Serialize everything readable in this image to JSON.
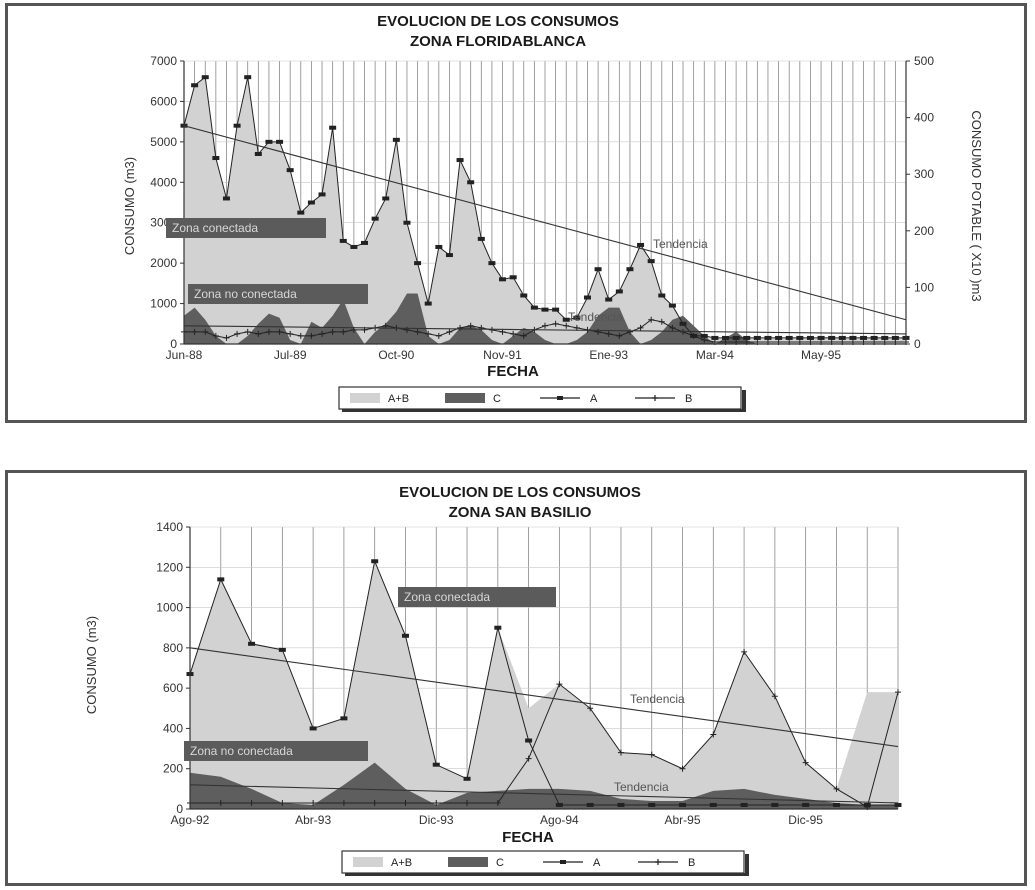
{
  "chart_data": [
    {
      "type": "area",
      "title": "EVOLUCION DE LOS CONSUMOS",
      "subtitle": "ZONA FLORIDABLANCA",
      "xlabel": "FECHA",
      "ylabel": "CONSUMO (m3)",
      "ylabel_right": "CONSUMO POTABLE ( X10 )m3",
      "ylim": [
        0,
        7000
      ],
      "ylim_right": [
        0,
        500
      ],
      "yticks": [
        0,
        1000,
        2000,
        3000,
        4000,
        5000,
        6000,
        7000
      ],
      "yticks_right": [
        0,
        100,
        200,
        300,
        400,
        500
      ],
      "xticks": [
        {
          "label": "Jun-88",
          "index": 0
        },
        {
          "label": "Jul-89",
          "index": 10
        },
        {
          "label": "Oct-90",
          "index": 20
        },
        {
          "label": "Nov-91",
          "index": 30
        },
        {
          "label": "Ene-93",
          "index": 40
        },
        {
          "label": "Mar-94",
          "index": 50
        },
        {
          "label": "May-95",
          "index": 60
        }
      ],
      "n_points": 69,
      "grid": "vertical",
      "series": [
        {
          "name": "A+B",
          "kind": "area",
          "color": "#d2d2d2",
          "values": [
            5400,
            6400,
            6600,
            4600,
            3600,
            5400,
            6600,
            4700,
            5000,
            5000,
            4300,
            3250,
            3500,
            3700,
            5350,
            2550,
            2400,
            2500,
            3100,
            3600,
            5050,
            3000,
            2000,
            1000,
            2400,
            2200,
            4550,
            4000,
            2600,
            2000,
            1600,
            1650,
            1200,
            900,
            850,
            850,
            600,
            650,
            1150,
            1850,
            1100,
            1300,
            1850,
            2450,
            2050,
            1200,
            950,
            500,
            200,
            200,
            150,
            150,
            150,
            150,
            150,
            150,
            150,
            150,
            150,
            150,
            150,
            150,
            150,
            150,
            150,
            150,
            150,
            150,
            150
          ]
        },
        {
          "name": "C",
          "kind": "area",
          "color": "#5e5e5e",
          "values": [
            700,
            900,
            600,
            200,
            0,
            0,
            200,
            500,
            750,
            650,
            100,
            0,
            550,
            400,
            700,
            1100,
            400,
            0,
            300,
            500,
            800,
            1250,
            1250,
            200,
            0,
            100,
            400,
            450,
            350,
            100,
            0,
            200,
            400,
            300,
            100,
            0,
            0,
            100,
            300,
            700,
            900,
            900,
            300,
            0,
            100,
            300,
            600,
            700,
            450,
            200,
            0,
            150,
            300,
            100,
            0,
            0,
            0,
            0,
            0,
            0,
            0,
            0,
            0,
            0,
            0,
            0,
            0,
            0,
            0
          ]
        },
        {
          "name": "A",
          "kind": "line",
          "color": "#222222",
          "values": [
            5400,
            6400,
            6600,
            4600,
            3600,
            5400,
            6600,
            4700,
            5000,
            5000,
            4300,
            3250,
            3500,
            3700,
            5350,
            2550,
            2400,
            2500,
            3100,
            3600,
            5050,
            3000,
            2000,
            1000,
            2400,
            2200,
            4550,
            4000,
            2600,
            2000,
            1600,
            1650,
            1200,
            900,
            850,
            850,
            600,
            650,
            1150,
            1850,
            1100,
            1300,
            1850,
            2450,
            2050,
            1200,
            950,
            500,
            200,
            200,
            150,
            150,
            150,
            150,
            150,
            150,
            150,
            150,
            150,
            150,
            150,
            150,
            150,
            150,
            150,
            150,
            150,
            150,
            150
          ]
        },
        {
          "name": "B",
          "kind": "line",
          "color": "#222222",
          "values": [
            300,
            300,
            300,
            200,
            150,
            250,
            300,
            250,
            300,
            300,
            250,
            200,
            200,
            250,
            300,
            300,
            350,
            350,
            400,
            450,
            400,
            350,
            300,
            250,
            200,
            300,
            400,
            450,
            400,
            350,
            300,
            250,
            200,
            350,
            450,
            500,
            450,
            400,
            350,
            300,
            250,
            200,
            300,
            400,
            600,
            550,
            400,
            300,
            200,
            100,
            50,
            50,
            50,
            50,
            50,
            50,
            50,
            50,
            50,
            50,
            50,
            50,
            50,
            50,
            50,
            50,
            50,
            50,
            50
          ]
        }
      ],
      "trendlines": [
        {
          "label": "Tendencia",
          "from": [
            0,
            5400
          ],
          "to": [
            68,
            600
          ]
        },
        {
          "label": "Tendencia",
          "from": [
            0,
            450
          ],
          "to": [
            68,
            250
          ]
        }
      ],
      "annotations": [
        "Zona conectada",
        "Zona no conectada"
      ],
      "legend": [
        "A+B",
        "C",
        "A",
        "B"
      ],
      "legend_position": "bottom"
    },
    {
      "type": "area",
      "title": "EVOLUCION DE LOS CONSUMOS",
      "subtitle": "ZONA SAN BASILIO",
      "xlabel": "FECHA",
      "ylabel": "CONSUMO (m3)",
      "ylim": [
        0,
        1400
      ],
      "yticks": [
        0,
        200,
        400,
        600,
        800,
        1000,
        1200,
        1400
      ],
      "xticks": [
        {
          "label": "Ago-92",
          "index": 0
        },
        {
          "label": "Abr-93",
          "index": 4
        },
        {
          "label": "Dic-93",
          "index": 8
        },
        {
          "label": "Ago-94",
          "index": 12
        },
        {
          "label": "Abr-95",
          "index": 16
        },
        {
          "label": "Dic-95",
          "index": 20
        }
      ],
      "n_points": 24,
      "grid": "vertical",
      "series": [
        {
          "name": "A+B",
          "kind": "area",
          "color": "#d2d2d2",
          "values": [
            670,
            1140,
            820,
            790,
            400,
            450,
            1230,
            860,
            220,
            150,
            900,
            500,
            620,
            500,
            280,
            270,
            200,
            370,
            780,
            560,
            230,
            100,
            580,
            580
          ]
        },
        {
          "name": "C",
          "kind": "area",
          "color": "#5e5e5e",
          "values": [
            180,
            160,
            100,
            30,
            20,
            120,
            230,
            100,
            20,
            80,
            90,
            100,
            100,
            90,
            50,
            40,
            40,
            90,
            100,
            70,
            50,
            30,
            20,
            20
          ]
        },
        {
          "name": "A",
          "kind": "line",
          "color": "#222222",
          "values": [
            670,
            1140,
            820,
            790,
            400,
            450,
            1230,
            860,
            220,
            150,
            900,
            340,
            20,
            20,
            20,
            20,
            20,
            20,
            20,
            20,
            20,
            20,
            20,
            20
          ]
        },
        {
          "name": "B",
          "kind": "line",
          "color": "#222222",
          "values": [
            30,
            30,
            30,
            30,
            30,
            30,
            30,
            30,
            30,
            30,
            30,
            250,
            620,
            500,
            280,
            270,
            200,
            370,
            780,
            560,
            230,
            100,
            10,
            580
          ]
        }
      ],
      "trendlines": [
        {
          "label": "Tendencia",
          "from": [
            0,
            800
          ],
          "to": [
            23,
            310
          ]
        },
        {
          "label": "Tendencia",
          "from": [
            0,
            120
          ],
          "to": [
            23,
            30
          ]
        }
      ],
      "annotations": [
        "Zona conectada",
        "Zona no conectada"
      ],
      "legend": [
        "A+B",
        "C",
        "A",
        "B"
      ],
      "legend_position": "bottom"
    }
  ]
}
